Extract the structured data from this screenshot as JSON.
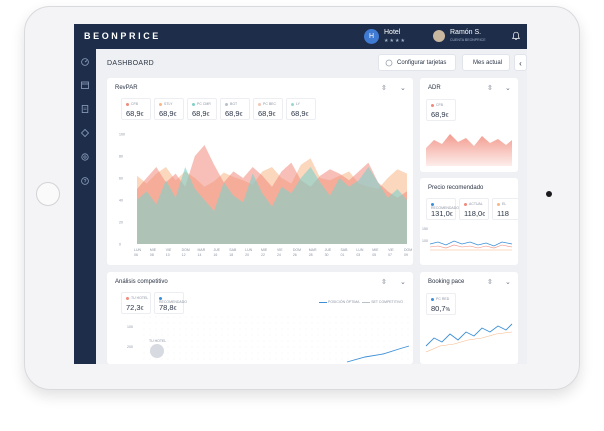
{
  "app": {
    "logo": "BEONPRICE"
  },
  "topbar": {
    "hotel_initial": "H",
    "hotel_name": "Hotel",
    "hotel_stars": "★★★★",
    "user_name": "Ramón S.",
    "user_sub": "CUENTA BEONPRICE"
  },
  "page": {
    "title": "DASHBOARD"
  },
  "toolbar": {
    "configure_label": "Configurar tarjetas",
    "period_label": "Mes actual",
    "collapse_glyph": "‹"
  },
  "revpar": {
    "title": "RevPAR",
    "kpis": [
      {
        "label": "CFB",
        "value": "68,9",
        "unit": "€",
        "color": "#f08a7b"
      },
      {
        "label": "STLY",
        "value": "68,9",
        "unit": "€",
        "color": "#f7b788"
      },
      {
        "label": "PC CMR",
        "value": "68,9",
        "unit": "€",
        "color": "#7fd1c9"
      },
      {
        "label": "BGT",
        "value": "68,9",
        "unit": "€",
        "color": "#b8c0cc"
      },
      {
        "label": "PC BEC",
        "value": "68,9",
        "unit": "€",
        "color": "#f2c6b6"
      },
      {
        "label": "LY",
        "value": "68,9",
        "unit": "€",
        "color": "#9ad7d0"
      }
    ],
    "y_ticks": [
      "100",
      "80",
      "60",
      "40",
      "20",
      "0"
    ],
    "x_ticks": [
      [
        "LUN",
        "06"
      ],
      [
        "MIE",
        "08"
      ],
      [
        "VIE",
        "10"
      ],
      [
        "DOM",
        "12"
      ],
      [
        "MAR",
        "14"
      ],
      [
        "JUE",
        "16"
      ],
      [
        "SAB",
        "18"
      ],
      [
        "LUN",
        "20"
      ],
      [
        "MIE",
        "22"
      ],
      [
        "VIE",
        "24"
      ],
      [
        "DOM",
        "26"
      ],
      [
        "MAR",
        "28"
      ],
      [
        "JUE",
        "30"
      ],
      [
        "SAB",
        "01"
      ],
      [
        "LUN",
        "03"
      ],
      [
        "MIE",
        "05"
      ],
      [
        "VIE",
        "07"
      ],
      [
        "DOM",
        "09"
      ]
    ]
  },
  "adr": {
    "title": "ADR",
    "kpi": {
      "label": "CFB",
      "value": "68,9",
      "unit": "€",
      "color": "#f08a7b"
    }
  },
  "precio": {
    "title": "Precio recomendado",
    "kpis": [
      {
        "label": "RECOMENDADO",
        "value": "131,0",
        "unit": "€",
        "color": "#3c8fd6"
      },
      {
        "label": "ACTUAL",
        "value": "118,0",
        "unit": "€",
        "color": "#f08a7b"
      },
      {
        "label": "EL",
        "value": "118",
        "unit": "",
        "color": "#f7b788"
      }
    ],
    "y_ticks": [
      "150",
      "100"
    ]
  },
  "competitivo": {
    "title": "Análisis competitivo",
    "kpis": [
      {
        "label": "TU HOTEL",
        "value": "72,3",
        "unit": "€",
        "color": "#f08a7b"
      },
      {
        "label": "RECOMENDADO",
        "value": "78,8",
        "unit": "€",
        "color": "#3c8fd6"
      }
    ],
    "legend": [
      "POSICIÓN ÓPTIMA",
      "SET COMPETITIVO"
    ],
    "y_ticks": [
      "100",
      "200"
    ],
    "avatar_label": "TU HOTEL"
  },
  "booking": {
    "title": "Booking pace",
    "kpi": {
      "label": "PC RED",
      "value": "80,7",
      "unit": "%",
      "color": "#3c8fd6"
    }
  },
  "icons": {
    "move": "⇳",
    "chevron": "⌄"
  },
  "colors": {
    "navy": "#1e2e4a",
    "accent_blue": "#3c8fd6",
    "salmon": "#f08a7b",
    "peach": "#f7b788",
    "teal": "#7fd1c9"
  }
}
